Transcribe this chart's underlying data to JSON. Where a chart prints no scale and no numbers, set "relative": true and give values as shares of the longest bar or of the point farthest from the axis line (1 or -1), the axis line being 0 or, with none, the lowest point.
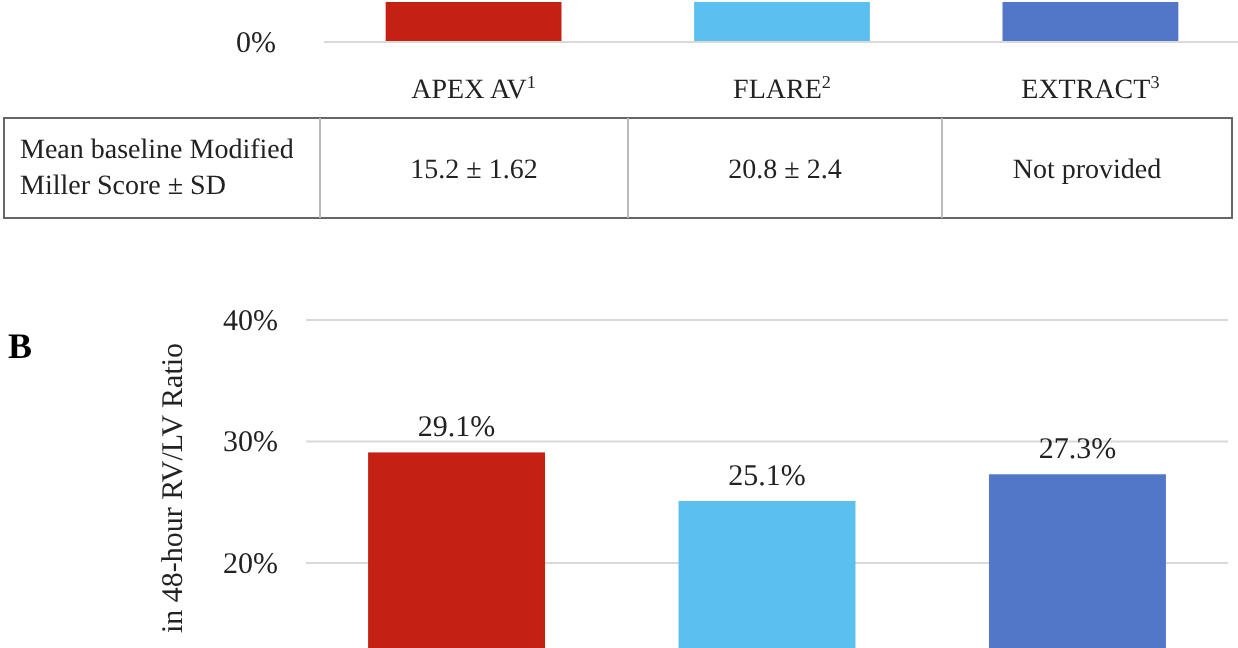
{
  "chart_data": [
    {
      "type": "bar",
      "relative": true,
      "categories": [
        "APEX AV$^{1}$",
        "FLARE$^{2}$",
        "EXTRACT$^{3}$"
      ],
      "values": [
        1,
        1,
        1
      ],
      "colors": [
        "#c42114",
        "#5bc0f0",
        "#5277c9"
      ],
      "annotations": [
        "0%",
        "Mean baseline Modified Miller Score ± SD",
        "15.2 ± 1.62",
        "20.8 ± 2.4",
        "Not provided"
      ]
    },
    {
      "type": "bar",
      "title": "B",
      "ylabel": "in 48-hour RV/LV Ratio",
      "categories": [
        null,
        null,
        null
      ],
      "values": [
        29.1,
        25.1,
        27.3
      ],
      "colors": [
        "#c42114",
        "#5bc0f0",
        "#5277c9"
      ],
      "value_labels": [
        "29.1%",
        "25.1%",
        "27.3%"
      ],
      "ylim": [
        13,
        40
      ],
      "yticks": [
        {
          "value": 20,
          "label": "20%"
        },
        {
          "value": 30,
          "label": "30%"
        },
        {
          "value": 40,
          "label": "40%"
        }
      ],
      "grid": "y"
    }
  ]
}
